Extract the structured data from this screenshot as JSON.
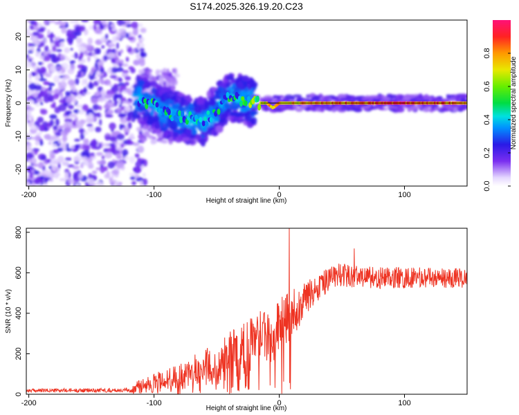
{
  "title": "S174.2025.326.19.20.C23",
  "chart_data": [
    {
      "type": "heatmap",
      "name": "spectrogram",
      "xlabel": "Height of straight line (km)",
      "ylabel": "Frequency (Hz)",
      "xlim": [
        -202,
        150
      ],
      "ylim": [
        -25,
        25
      ],
      "x_ticks": [
        -200,
        -100,
        0,
        100
      ],
      "x_tick_labels": [
        "-200",
        "-100",
        "0",
        "100"
      ],
      "y_ticks": [
        -20,
        -10,
        0,
        10,
        20
      ],
      "y_tick_labels": [
        "-20",
        "-10",
        "0",
        "10",
        "20"
      ],
      "colorbar": {
        "label": "Normalized spectral amplitude",
        "range": [
          0.0,
          1.0
        ],
        "ticks": [
          0.0,
          0.2,
          0.4,
          0.6,
          0.8
        ],
        "tick_labels": [
          "0.0",
          "0.2",
          "0.4",
          "0.6",
          "0.8"
        ]
      },
      "ridge": [
        {
          "x": -110,
          "f": 1.0,
          "a": 0.5
        },
        {
          "x": -100,
          "f": -1.0,
          "a": 0.55
        },
        {
          "x": -90,
          "f": -3.0,
          "a": 0.5
        },
        {
          "x": -80,
          "f": -4.0,
          "a": 0.55
        },
        {
          "x": -70,
          "f": -5.0,
          "a": 0.55
        },
        {
          "x": -60,
          "f": -5.5,
          "a": 0.5
        },
        {
          "x": -50,
          "f": -2.0,
          "a": 0.55
        },
        {
          "x": -40,
          "f": 2.0,
          "a": 0.55
        },
        {
          "x": -30,
          "f": 1.0,
          "a": 0.6
        },
        {
          "x": -20,
          "f": 0.0,
          "a": 0.75
        },
        {
          "x": -10,
          "f": 0.0,
          "a": 0.8
        },
        {
          "x": -5,
          "f": -1.5,
          "a": 0.9
        },
        {
          "x": 0,
          "f": 0.0,
          "a": 0.85
        },
        {
          "x": 20,
          "f": 0.0,
          "a": 0.85
        },
        {
          "x": 50,
          "f": 0.0,
          "a": 0.9
        },
        {
          "x": 75,
          "f": 0.0,
          "a": 0.95
        },
        {
          "x": 100,
          "f": 0.0,
          "a": 1.0
        },
        {
          "x": 125,
          "f": 0.0,
          "a": 0.95
        },
        {
          "x": 150,
          "f": 0.0,
          "a": 0.85
        }
      ]
    },
    {
      "type": "line",
      "name": "snr",
      "xlabel": "Height of straight line (km)",
      "ylabel": "SNR (10 * v/v)",
      "xlim": [
        -202,
        150
      ],
      "ylim": [
        0,
        820
      ],
      "x_ticks": [
        -200,
        -100,
        0,
        100
      ],
      "x_tick_labels": [
        "-200",
        "-100",
        "0",
        "100"
      ],
      "y_ticks": [
        0,
        200,
        400,
        600,
        800
      ],
      "y_tick_labels": [
        "0",
        "200",
        "400",
        "600",
        "800"
      ],
      "line_color": "#ee3322",
      "trend": [
        {
          "x": -202,
          "mean": 18,
          "noise": 10
        },
        {
          "x": -120,
          "mean": 20,
          "noise": 12
        },
        {
          "x": -110,
          "mean": 40,
          "noise": 40
        },
        {
          "x": -80,
          "mean": 80,
          "noise": 70
        },
        {
          "x": -50,
          "mean": 140,
          "noise": 110
        },
        {
          "x": -30,
          "mean": 200,
          "noise": 150
        },
        {
          "x": -10,
          "mean": 260,
          "noise": 160
        },
        {
          "x": 10,
          "mean": 380,
          "noise": 130
        },
        {
          "x": 25,
          "mean": 500,
          "noise": 80
        },
        {
          "x": 45,
          "mean": 590,
          "noise": 65
        },
        {
          "x": 80,
          "mean": 575,
          "noise": 60
        },
        {
          "x": 150,
          "mean": 575,
          "noise": 55
        }
      ],
      "spikes": [
        {
          "x": -15,
          "y": 410
        },
        {
          "x": 8,
          "y": 820
        },
        {
          "x": 9,
          "y": 25
        },
        {
          "x": 12,
          "y": 520
        },
        {
          "x": 60,
          "y": 720
        }
      ]
    }
  ]
}
